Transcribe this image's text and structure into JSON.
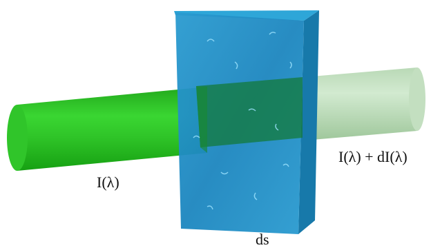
{
  "labels": {
    "incident": "I(λ)",
    "transmitted": "I(λ) + dI(λ)",
    "thickness": "ds"
  }
}
